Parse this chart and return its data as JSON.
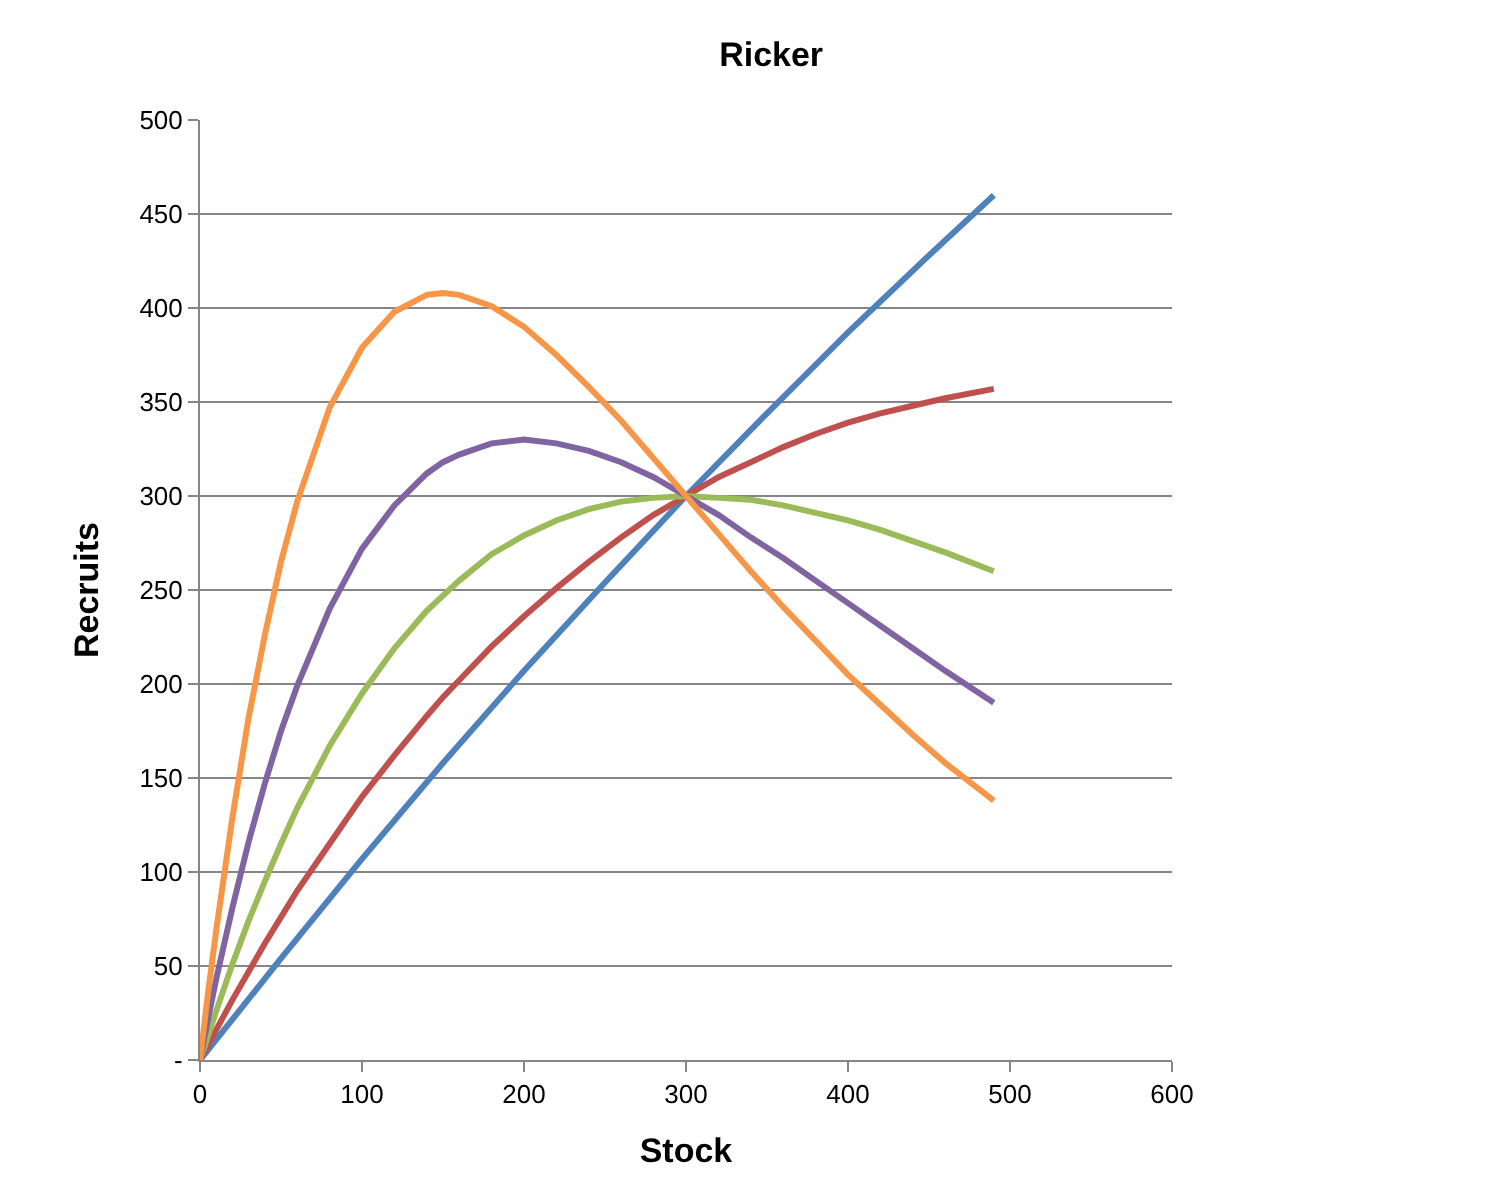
{
  "chart_data": {
    "type": "line",
    "title": "Ricker",
    "xlabel": "Stock",
    "ylabel": "Recruits",
    "x": [
      0,
      5,
      10,
      20,
      30,
      40,
      50,
      60,
      80,
      100,
      120,
      140,
      150,
      160,
      180,
      200,
      220,
      240,
      260,
      280,
      300,
      320,
      340,
      360,
      380,
      400,
      420,
      440,
      460,
      490
    ],
    "series": [
      {
        "color": "#4f81bd",
        "x": [
          0,
          50,
          100,
          150,
          200,
          250,
          300,
          350,
          400,
          450,
          490
        ],
        "values": [
          0,
          54,
          107,
          158,
          207,
          254,
          300,
          344,
          387,
          428,
          460
        ]
      },
      {
        "color": "#c0504d",
        "values": [
          0,
          8,
          16,
          32,
          47,
          62,
          76,
          90,
          115,
          140,
          162,
          183,
          193,
          202,
          220,
          236,
          251,
          265,
          278,
          290,
          300,
          310,
          318,
          326,
          333,
          339,
          344,
          348,
          352,
          357
        ]
      },
      {
        "color": "#9bbb59",
        "values": [
          0,
          13,
          26,
          51,
          74,
          95,
          115,
          134,
          167,
          195,
          219,
          239,
          247,
          255,
          269,
          279,
          287,
          293,
          297,
          299,
          300,
          299,
          298,
          295,
          291,
          287,
          282,
          276,
          270,
          260
        ]
      },
      {
        "color": "#8064a2",
        "values": [
          0,
          22,
          43,
          81,
          116,
          147,
          175,
          199,
          240,
          272,
          295,
          312,
          318,
          322,
          328,
          330,
          328,
          324,
          318,
          310,
          300,
          290,
          278,
          267,
          255,
          243,
          231,
          219,
          207,
          190
        ]
      },
      {
        "color": "#f79646",
        "values": [
          0,
          36,
          69,
          129,
          182,
          226,
          265,
          297,
          347,
          379,
          398,
          407,
          408,
          407,
          401,
          390,
          375,
          358,
          340,
          320,
          300,
          280,
          260,
          241,
          223,
          205,
          189,
          173,
          158,
          138
        ]
      }
    ],
    "xlim": [
      0,
      600
    ],
    "xticks": [
      0,
      100,
      200,
      300,
      400,
      500,
      600
    ],
    "ylim": [
      0,
      500
    ],
    "yticks": [
      {
        "value": 0,
        "label": "-"
      },
      50,
      100,
      150,
      200,
      250,
      300,
      350,
      400,
      450,
      500
    ],
    "grid": "y",
    "marker": "none",
    "line_style": "solid"
  }
}
